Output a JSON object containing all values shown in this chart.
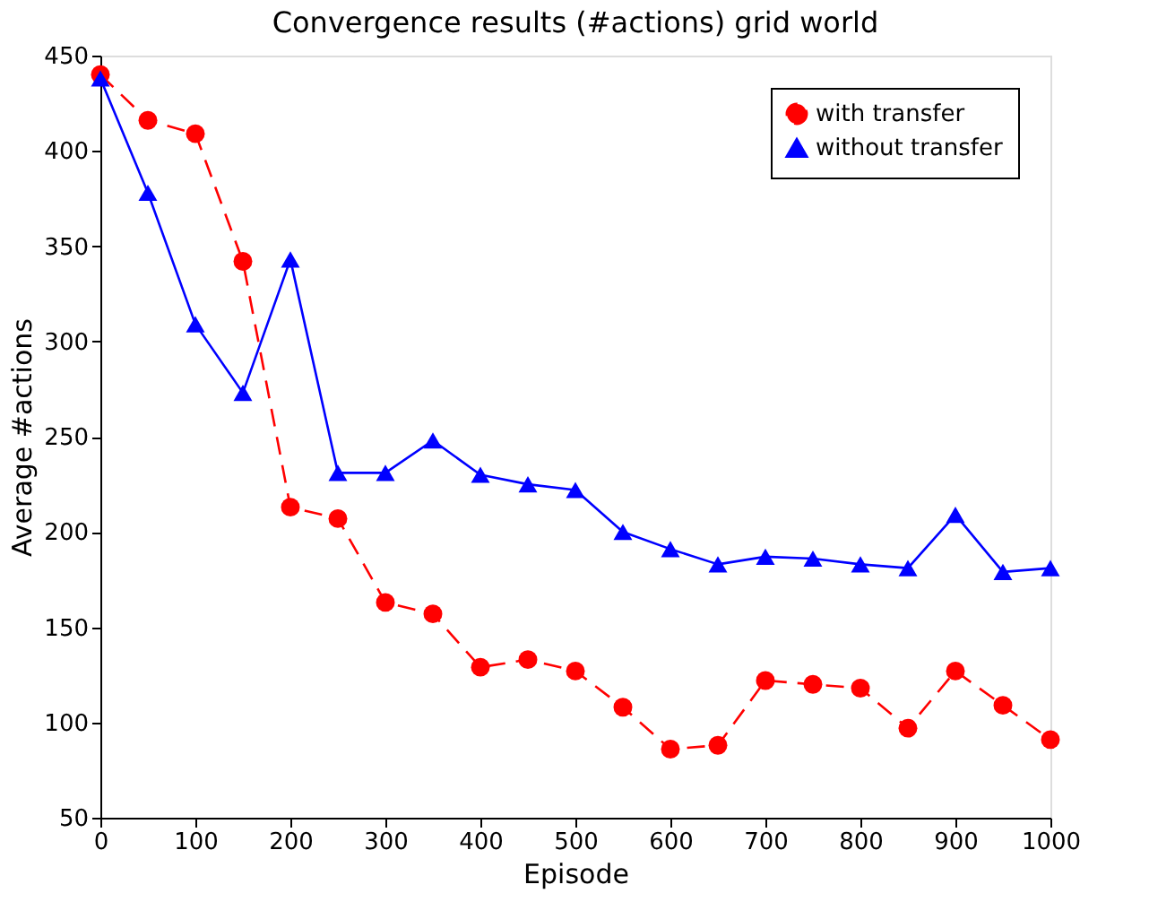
{
  "chart_data": {
    "type": "line",
    "title": "Convergence results (#actions) grid world",
    "xlabel": "Episode",
    "ylabel": "Average #actions",
    "x": [
      0,
      50,
      100,
      150,
      200,
      250,
      300,
      350,
      400,
      450,
      500,
      550,
      600,
      650,
      700,
      750,
      800,
      850,
      900,
      950,
      1000
    ],
    "series": [
      {
        "name": "with transfer",
        "color": "#ff0000",
        "marker": "circle",
        "line_style": "dashed",
        "values": [
          440,
          416,
          409,
          342,
          213,
          207,
          163,
          157,
          129,
          133,
          127,
          108,
          86,
          88,
          122,
          120,
          118,
          97,
          127,
          109,
          91
        ]
      },
      {
        "name": "without transfer",
        "color": "#0000ff",
        "marker": "triangle",
        "line_style": "solid",
        "values": [
          438,
          378,
          309,
          273,
          343,
          231,
          231,
          248,
          230,
          225,
          222,
          200,
          191,
          183,
          187,
          186,
          183,
          181,
          209,
          179,
          181
        ]
      }
    ],
    "xlim": [
      0,
      1000
    ],
    "xticks": [
      0,
      100,
      200,
      300,
      400,
      500,
      600,
      700,
      800,
      900,
      1000
    ],
    "ylim": [
      50,
      450
    ],
    "yticks": [
      50,
      100,
      150,
      200,
      250,
      300,
      350,
      400,
      450
    ],
    "grid": false,
    "legend": "top right"
  }
}
